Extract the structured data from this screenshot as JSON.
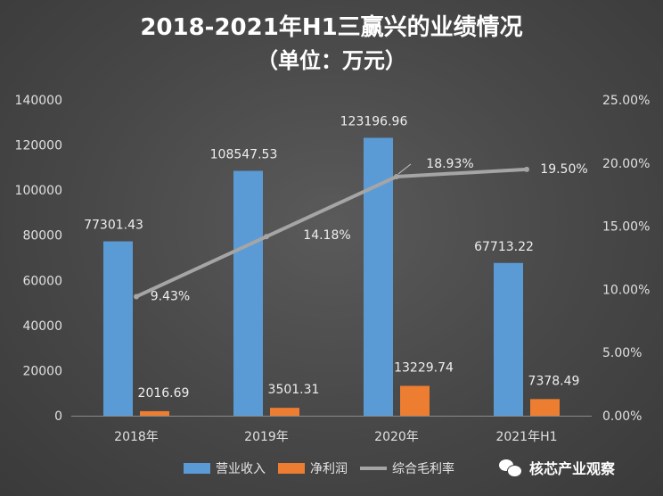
{
  "chart_data": {
    "type": "bar",
    "title": "2018-2021年H1三赢兴的业绩情况",
    "subtitle": "（单位：万元）",
    "categories": [
      "2018年",
      "2019年",
      "2020年",
      "2021年H1"
    ],
    "series": [
      {
        "name": "营业收入",
        "kind": "bar",
        "axis": "left",
        "color": "#5b9bd5",
        "values": [
          77301.43,
          108547.53,
          123196.96,
          67713.22
        ],
        "labels": [
          "77301.43",
          "108547.53",
          "123196.96",
          "67713.22"
        ]
      },
      {
        "name": "净利润",
        "kind": "bar",
        "axis": "left",
        "color": "#ed7d31",
        "values": [
          2016.69,
          3501.31,
          13229.74,
          7378.49
        ],
        "labels": [
          "2016.69",
          "3501.31",
          "13229.74",
          "7378.49"
        ]
      },
      {
        "name": "综合毛利率",
        "kind": "line",
        "axis": "right",
        "color": "#a5a5a5",
        "values": [
          9.43,
          14.18,
          18.93,
          19.5
        ],
        "labels": [
          "9.43%",
          "14.18%",
          "18.93%",
          "19.50%"
        ]
      }
    ],
    "y_left": {
      "min": 0,
      "max": 140000,
      "ticks": [
        "0",
        "20000",
        "40000",
        "60000",
        "80000",
        "100000",
        "120000",
        "140000"
      ]
    },
    "y_right": {
      "min": 0,
      "max": 25,
      "ticks": [
        "0.00%",
        "5.00%",
        "10.00%",
        "15.00%",
        "20.00%",
        "25.00%"
      ]
    },
    "grid": false,
    "legend_position": "bottom"
  },
  "watermark": {
    "text": "核芯产业观察",
    "icon": "wechat-icon"
  }
}
